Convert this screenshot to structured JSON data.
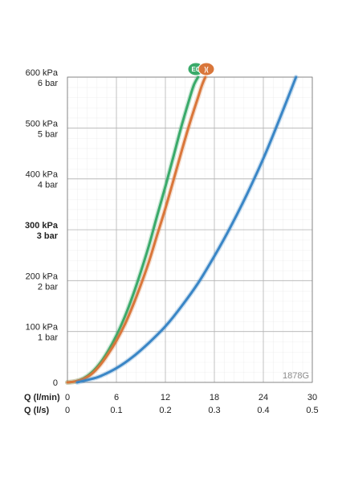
{
  "chart_data": {
    "type": "line",
    "x_unit_label": "Q (l/min)",
    "x2_unit_label": "Q (l/s)",
    "x_ticks": [
      "0",
      "6",
      "12",
      "18",
      "24",
      "30"
    ],
    "x2_ticks": [
      "0",
      "0.1",
      "0.2",
      "0.3",
      "0.4",
      "0.5"
    ],
    "xlim": [
      0,
      30
    ],
    "ylim": [
      0,
      600
    ],
    "y_ticks": [
      {
        "value": 0,
        "kpa": "0",
        "bar": "",
        "bold": false
      },
      {
        "value": 100,
        "kpa": "100 kPa",
        "bar": "1 bar",
        "bold": false
      },
      {
        "value": 200,
        "kpa": "200 kPa",
        "bar": "2 bar",
        "bold": false
      },
      {
        "value": 300,
        "kpa": "300 kPa",
        "bar": "3 bar",
        "bold": true
      },
      {
        "value": 400,
        "kpa": "400 kPa",
        "bar": "4 bar",
        "bold": false
      },
      {
        "value": 500,
        "kpa": "500 kPa",
        "bar": "5 bar",
        "bold": false
      },
      {
        "value": 600,
        "kpa": "600 kPa",
        "bar": "6 bar",
        "bold": false
      }
    ],
    "grid": true,
    "series": [
      {
        "color": "#3aaa6a",
        "x": [
          0,
          1,
          2,
          3,
          4,
          5,
          6,
          7,
          8,
          9,
          10,
          11,
          12,
          13,
          14,
          15,
          15.5,
          16
        ],
        "y": [
          0,
          2,
          8,
          20,
          38,
          62,
          92,
          128,
          170,
          218,
          270,
          328,
          385,
          445,
          505,
          560,
          585,
          600
        ]
      },
      {
        "color": "#d9763a",
        "x": [
          0,
          1,
          2,
          3,
          4,
          5,
          6,
          7,
          8,
          9,
          10,
          11,
          12,
          13,
          14,
          15,
          16,
          16.5,
          16.9
        ],
        "y": [
          0,
          2,
          7,
          17,
          34,
          56,
          82,
          113,
          150,
          192,
          238,
          290,
          342,
          398,
          455,
          510,
          560,
          585,
          600
        ]
      },
      {
        "color": "#3a86c6",
        "x": [
          1.2,
          2,
          3,
          4,
          6,
          8,
          10,
          12,
          14,
          16,
          18,
          20,
          22,
          24,
          26,
          28
        ],
        "y": [
          0,
          3,
          7,
          12,
          28,
          50,
          78,
          110,
          150,
          195,
          248,
          306,
          370,
          440,
          518,
          600
        ]
      }
    ],
    "badges": [
      {
        "text": "EC",
        "color": "#3aaa6a"
      },
      {
        "text": ")(",
        "color": "#d9763a"
      }
    ],
    "code_label": "1878G"
  }
}
